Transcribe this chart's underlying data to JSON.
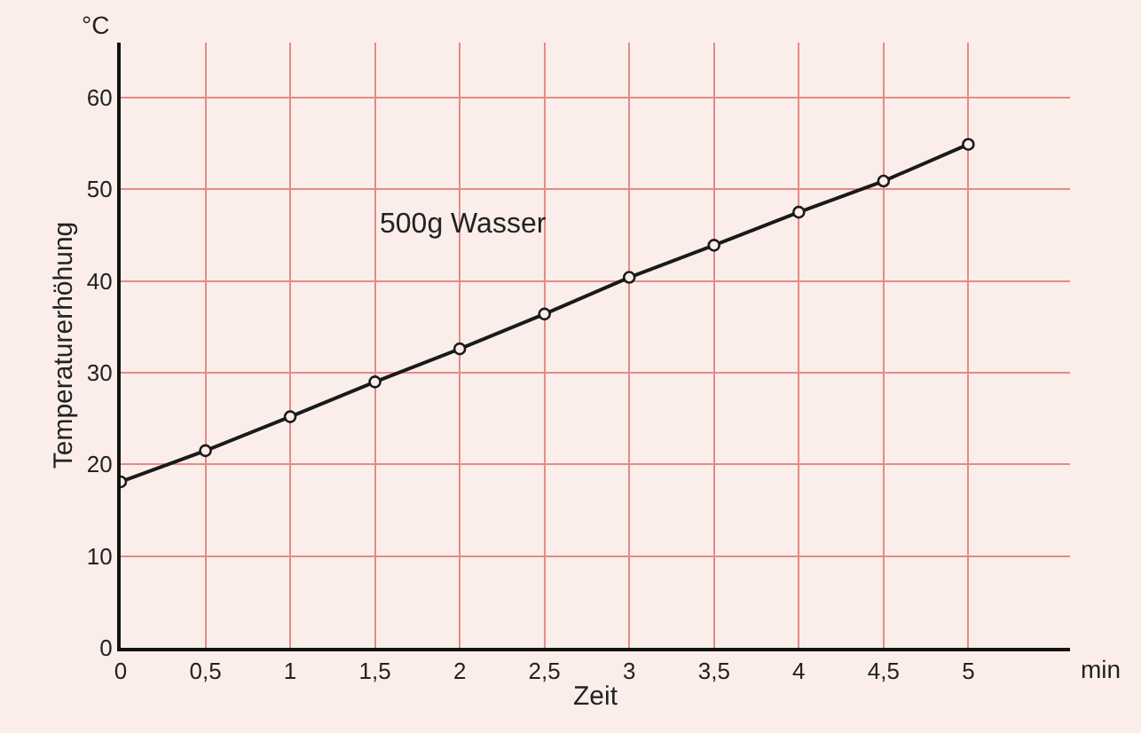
{
  "chart_data": {
    "type": "line",
    "xlabel": "Zeit",
    "ylabel": "Temperaturerhöhung",
    "annotations": [
      "°C",
      "min",
      "500g Wasser"
    ],
    "x": [
      0,
      0.5,
      1,
      1.5,
      2,
      2.5,
      3,
      3.5,
      4,
      4.5,
      5
    ],
    "series": [
      {
        "color": "#1a1a1a",
        "values": [
          18.1,
          21.5,
          25.2,
          29.0,
          32.6,
          36.4,
          40.4,
          43.9,
          47.5,
          50.9,
          54.9
        ]
      }
    ],
    "xlim": [
      0,
      5.6
    ],
    "ylim": [
      0,
      66
    ],
    "xticks": [
      0,
      {
        "value": 0.5,
        "label": "0,5"
      },
      1,
      {
        "value": 1.5,
        "label": "1,5"
      },
      2,
      {
        "value": 2.5,
        "label": "2,5"
      },
      3,
      {
        "value": 3.5,
        "label": "3,5"
      },
      4,
      {
        "value": 4.5,
        "label": "4,5"
      },
      5
    ],
    "yticks": [
      0,
      10,
      20,
      30,
      40,
      50,
      60
    ],
    "grid": true,
    "marker": "circle",
    "line_style": "solid"
  }
}
